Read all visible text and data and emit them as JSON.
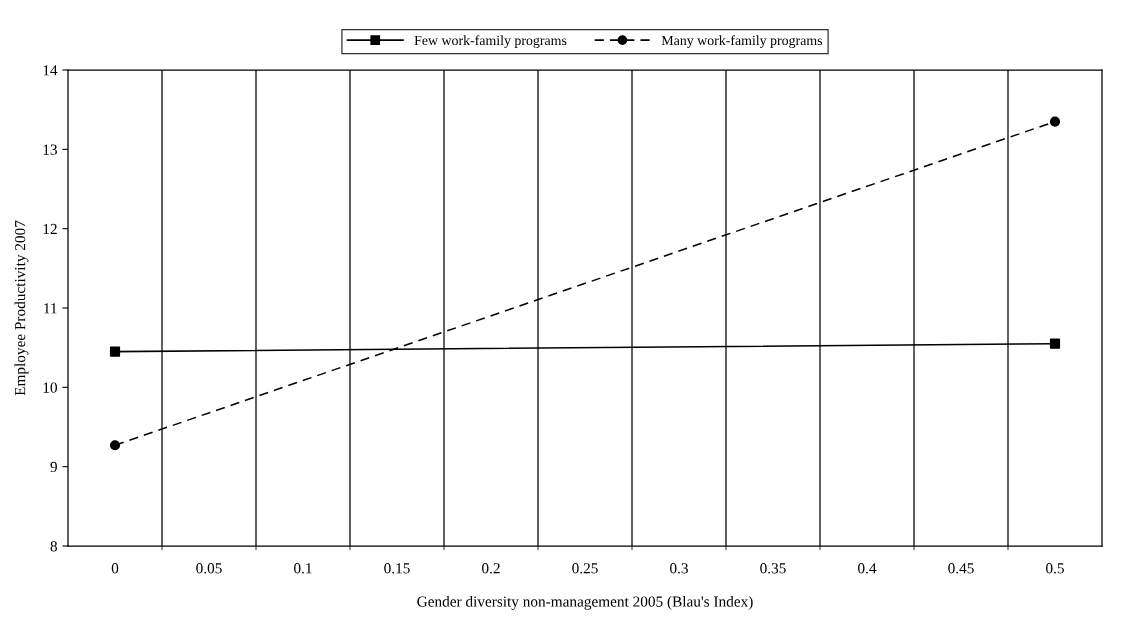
{
  "chart_data": {
    "type": "line",
    "xlabel": "Gender diversity non-management 2005 (Blau's Index)",
    "ylabel": "Employee Productivity 2007",
    "categories": [
      "0",
      "0.05",
      "0.1",
      "0.15",
      "0.2",
      "0.25",
      "0.3",
      "0.35",
      "0.4",
      "0.45",
      "0.5"
    ],
    "series": [
      {
        "name": "Few work-family programs",
        "color": "#000000",
        "values": [
          10.45,
          null,
          null,
          null,
          null,
          null,
          null,
          null,
          null,
          null,
          10.55
        ],
        "marker": "square",
        "line_style": "solid"
      },
      {
        "name": "Many work-family programs",
        "color": "#000000",
        "values": [
          9.27,
          null,
          null,
          null,
          null,
          null,
          null,
          null,
          null,
          null,
          13.35
        ],
        "marker": "circle",
        "line_style": "dashed"
      }
    ],
    "ylim": [
      8,
      14
    ],
    "yticks": [
      8,
      9,
      10,
      11,
      12,
      13,
      14
    ],
    "grid": "x",
    "legend": "top"
  }
}
